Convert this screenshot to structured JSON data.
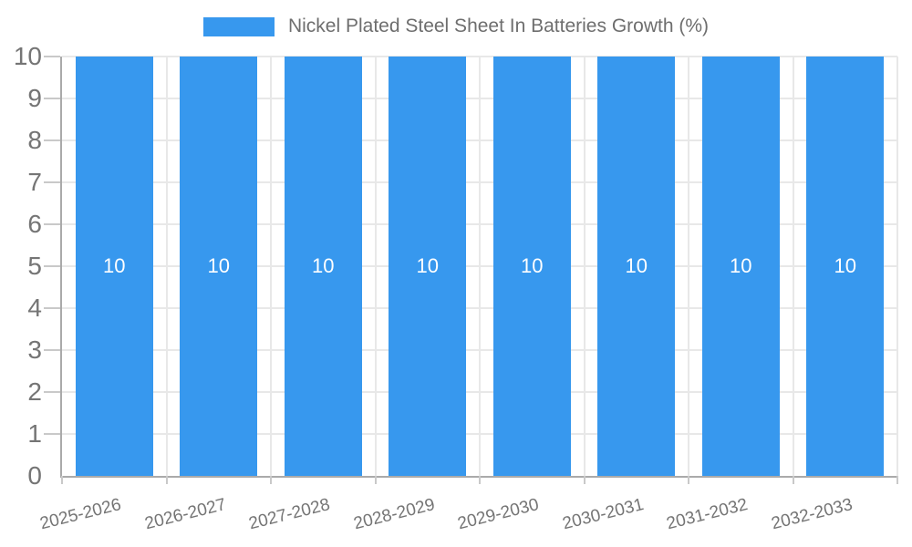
{
  "legend": {
    "label": "Nickel Plated Steel Sheet In Batteries Growth (%)"
  },
  "chart_data": {
    "type": "bar",
    "title": "Nickel Plated Steel Sheet In Batteries Growth (%)",
    "categories": [
      "2025-2026",
      "2026-2027",
      "2027-2028",
      "2028-2029",
      "2029-2030",
      "2030-2031",
      "2031-2032",
      "2032-2033"
    ],
    "series": [
      {
        "name": "Nickel Plated Steel Sheet In Batteries Growth (%)",
        "values": [
          10,
          10,
          10,
          10,
          10,
          10,
          10,
          10
        ]
      }
    ],
    "bar_value_labels": [
      "10",
      "10",
      "10",
      "10",
      "10",
      "10",
      "10",
      "10"
    ],
    "xlabel": "",
    "ylabel": "",
    "ylim": [
      0,
      10
    ],
    "yticks": [
      0,
      1,
      2,
      3,
      4,
      5,
      6,
      7,
      8,
      9,
      10
    ],
    "grid": true,
    "legend_position": "top-center",
    "colors": {
      "bar": "#3798ee",
      "value_label": "#ffffff",
      "axis_text": "#757575",
      "legend_text": "#6e6e6e",
      "gridline": "#e8e8e8",
      "axis_line": "#aaaaaa",
      "tick": "#c9c9c9",
      "background": "#ffffff"
    }
  }
}
